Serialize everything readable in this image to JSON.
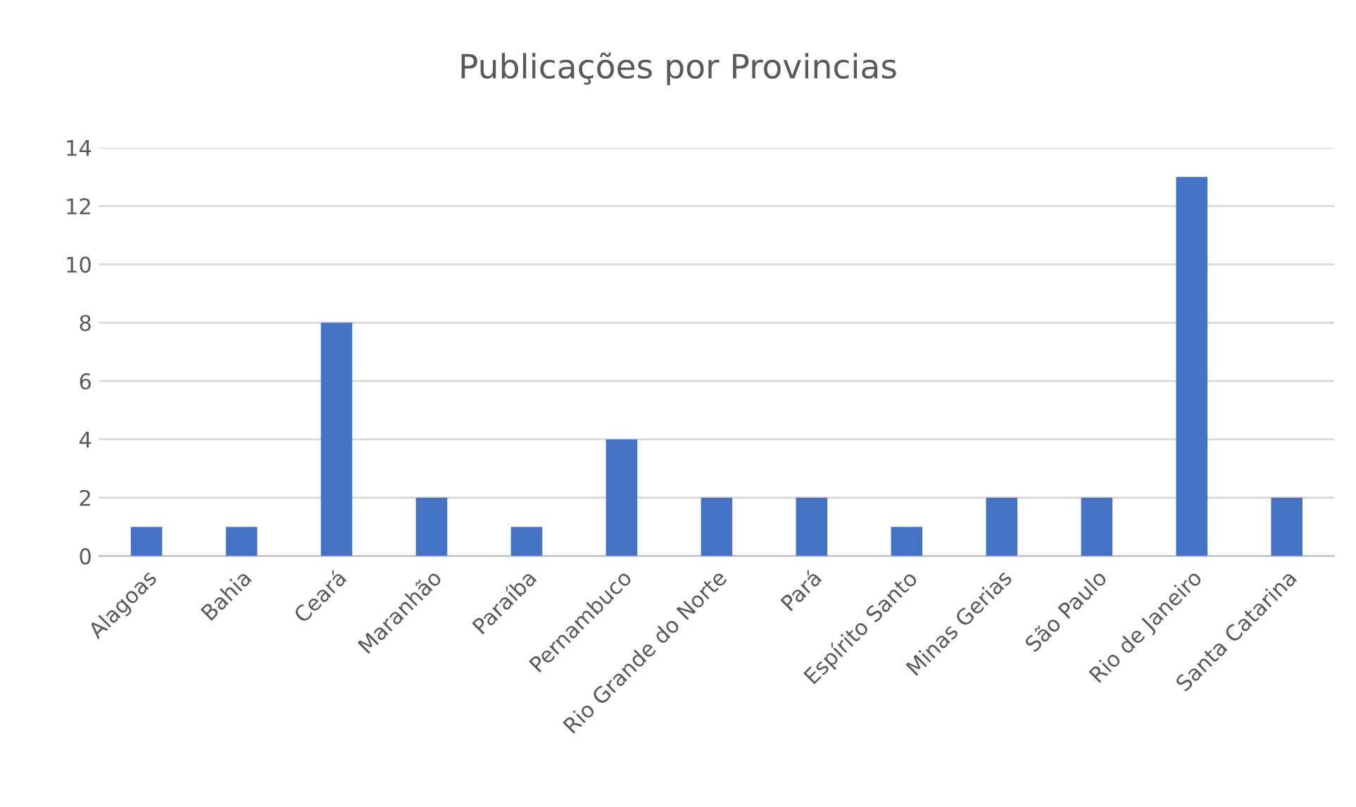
{
  "chart_data": {
    "type": "bar",
    "title": "Publicações por Provincias",
    "categories": [
      "Alagoas",
      "Bahia",
      "Ceará",
      "Maranhão",
      "Paraíba",
      "Pernambuco",
      "Rio Grande do Norte",
      "Pará",
      "Espírito Santo",
      "Minas Gerias",
      "São Paulo",
      "Rio de Janeiro",
      "Santa Catarina"
    ],
    "values": [
      1,
      1,
      8,
      2,
      1,
      4,
      2,
      2,
      1,
      2,
      2,
      13,
      2
    ],
    "color": "#4472c4",
    "ylim": [
      0,
      14
    ],
    "yticks": [
      0,
      2,
      4,
      6,
      8,
      10,
      12,
      14
    ],
    "grid": "y"
  }
}
